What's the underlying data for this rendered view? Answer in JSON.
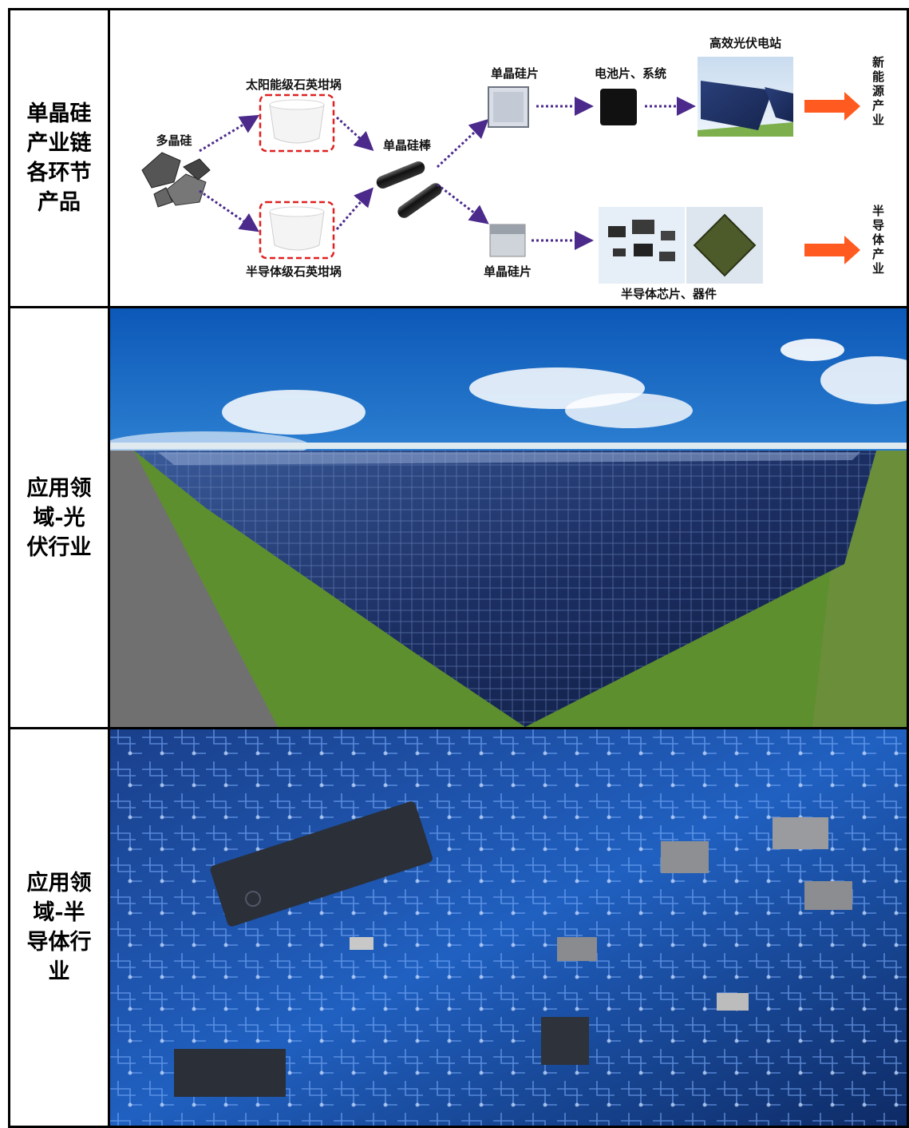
{
  "rows": [
    {
      "label": "单晶硅产业链各环节产品",
      "diagram": {
        "polysilicon": "多晶硅",
        "crucible_solar": "太阳能级石英坩埚",
        "crucible_semi": "半导体级石英坩埚",
        "ingot": "单晶硅棒",
        "wafer_top": "单晶硅片",
        "wafer_bottom": "单晶硅片",
        "cell_system": "电池片、系统",
        "pv_station": "高效光伏电站",
        "chips_devices": "半导体芯片、器件",
        "industry_new_energy": "新能源产业",
        "industry_semiconductor": "半导体产业"
      }
    },
    {
      "label": "应用领域-光伏行业",
      "image": "solar-farm-photo"
    },
    {
      "label": "应用领域-半导体行业",
      "image": "circuit-board-photo"
    }
  ],
  "colors": {
    "arrow_dotted": "#4b2a8c",
    "arrow_orange": "#ff5a1f",
    "crucible_border": "#e02020"
  }
}
